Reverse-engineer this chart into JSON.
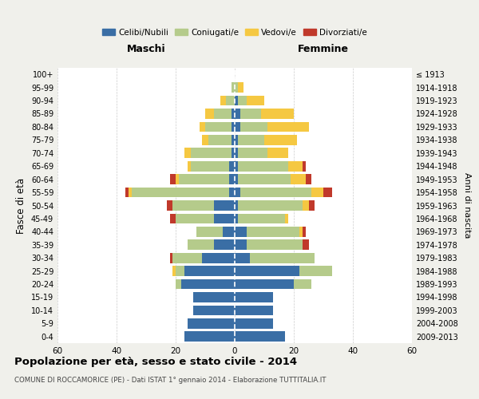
{
  "age_groups": [
    "0-4",
    "5-9",
    "10-14",
    "15-19",
    "20-24",
    "25-29",
    "30-34",
    "35-39",
    "40-44",
    "45-49",
    "50-54",
    "55-59",
    "60-64",
    "65-69",
    "70-74",
    "75-79",
    "80-84",
    "85-89",
    "90-94",
    "95-99",
    "100+"
  ],
  "birth_years": [
    "2009-2013",
    "2004-2008",
    "1999-2003",
    "1994-1998",
    "1989-1993",
    "1984-1988",
    "1979-1983",
    "1974-1978",
    "1969-1973",
    "1964-1968",
    "1959-1963",
    "1954-1958",
    "1949-1953",
    "1944-1948",
    "1939-1943",
    "1934-1938",
    "1929-1933",
    "1924-1928",
    "1919-1923",
    "1914-1918",
    "≤ 1913"
  ],
  "male": {
    "celibi": [
      17,
      16,
      14,
      14,
      18,
      17,
      11,
      7,
      4,
      7,
      7,
      2,
      2,
      2,
      1,
      1,
      1,
      1,
      0,
      0,
      0
    ],
    "coniugati": [
      0,
      0,
      0,
      0,
      2,
      3,
      10,
      9,
      9,
      13,
      14,
      33,
      17,
      13,
      14,
      8,
      9,
      6,
      3,
      1,
      0
    ],
    "vedovi": [
      0,
      0,
      0,
      0,
      0,
      1,
      0,
      0,
      0,
      0,
      0,
      1,
      1,
      1,
      2,
      2,
      2,
      3,
      2,
      0,
      0
    ],
    "divorziati": [
      0,
      0,
      0,
      0,
      0,
      0,
      1,
      0,
      0,
      2,
      2,
      1,
      2,
      0,
      0,
      0,
      0,
      0,
      0,
      0,
      0
    ]
  },
  "female": {
    "nubili": [
      17,
      13,
      13,
      13,
      20,
      22,
      5,
      4,
      4,
      1,
      1,
      2,
      1,
      1,
      1,
      1,
      2,
      2,
      1,
      0,
      0
    ],
    "coniugate": [
      0,
      0,
      0,
      0,
      6,
      11,
      22,
      19,
      18,
      16,
      22,
      24,
      18,
      17,
      10,
      9,
      9,
      7,
      3,
      1,
      0
    ],
    "vedove": [
      0,
      0,
      0,
      0,
      0,
      0,
      0,
      0,
      1,
      1,
      2,
      4,
      5,
      5,
      7,
      11,
      14,
      11,
      6,
      2,
      0
    ],
    "divorziate": [
      0,
      0,
      0,
      0,
      0,
      0,
      0,
      2,
      1,
      0,
      2,
      3,
      2,
      1,
      0,
      0,
      0,
      0,
      0,
      0,
      0
    ]
  },
  "colors": {
    "celibi_nubili": "#3a6ea5",
    "coniugati": "#b5cb8b",
    "vedovi": "#f5c842",
    "divorziati": "#c0392b"
  },
  "xlim": 60,
  "title": "Popolazione per età, sesso e stato civile - 2014",
  "subtitle": "COMUNE DI ROCCAMORICE (PE) - Dati ISTAT 1° gennaio 2014 - Elaborazione TUTTITALIA.IT",
  "ylabel_left": "Fasce di età",
  "ylabel_right": "Anni di nascita",
  "xlabel_male": "Maschi",
  "xlabel_female": "Femmine",
  "bg_color": "#f0f0eb",
  "plot_bg_color": "#ffffff",
  "legend_labels": [
    "Celibi/Nubili",
    "Coniugati/e",
    "Vedovi/e",
    "Divorziati/e"
  ]
}
